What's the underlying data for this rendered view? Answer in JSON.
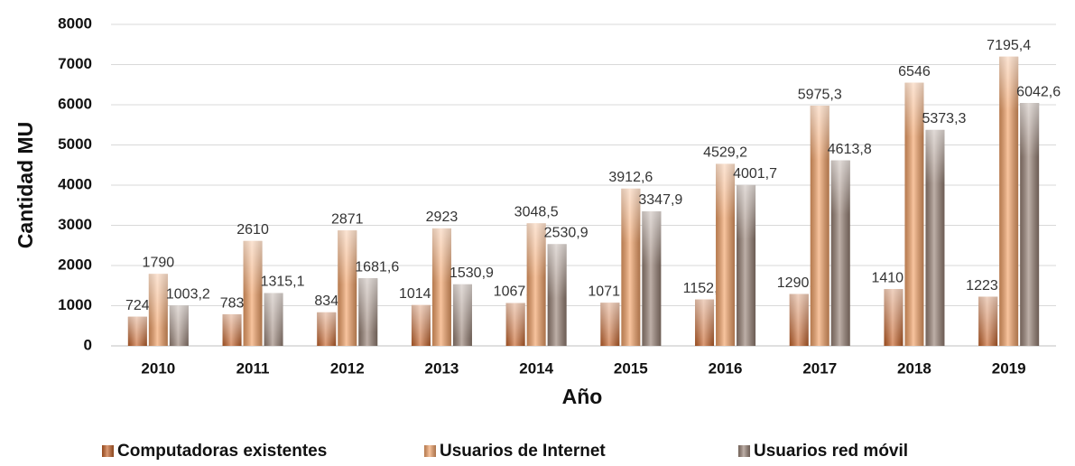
{
  "chart_data": {
    "type": "bar",
    "x_label": "Año",
    "y_label": "Cantidad MU",
    "categories": [
      "2010",
      "2011",
      "2012",
      "2013",
      "2014",
      "2015",
      "2016",
      "2017",
      "2018",
      "2019"
    ],
    "series": [
      {
        "name": "Computadoras existentes",
        "color": "#c8642a",
        "values": [
          724,
          783,
          834,
          1014.4,
          1067.4,
          1071.6,
          1152.6,
          1290.9,
          1410.2,
          1223.6
        ],
        "value_labels": [
          "724",
          "783",
          "834",
          "1014,4",
          "1067,4",
          "1071,6",
          "1152,6",
          "1290,9",
          "1410,2",
          "1223,6"
        ]
      },
      {
        "name": "Usuarios de Internet",
        "color": "#f4a46a",
        "values": [
          1790,
          2610,
          2871,
          2923,
          3048.5,
          3912.6,
          4529.2,
          5975.3,
          6546,
          7195.4
        ],
        "value_labels": [
          "1790",
          "2610",
          "2871",
          "2923",
          "3048,5",
          "3912,6",
          "4529,2",
          "5975,3",
          "6546",
          "7195,4"
        ]
      },
      {
        "name": "Usuarios red móvil",
        "color": "#9a8478",
        "values": [
          1003.2,
          1315.1,
          1681.6,
          1530.9,
          2530.9,
          3347.9,
          4001.7,
          4613.8,
          5373.3,
          6042.6
        ],
        "value_labels": [
          "1003,2",
          "1315,1",
          "1681,6",
          "1530,9",
          "2530,9",
          "3347,9",
          "4001,7",
          "4613,8",
          "5373,3",
          "6042,6"
        ]
      }
    ],
    "ylim": [
      0,
      8000
    ],
    "yticks": [
      0,
      1000,
      2000,
      3000,
      4000,
      5000,
      6000,
      7000,
      8000
    ],
    "grid": true,
    "legend": "bottom"
  }
}
